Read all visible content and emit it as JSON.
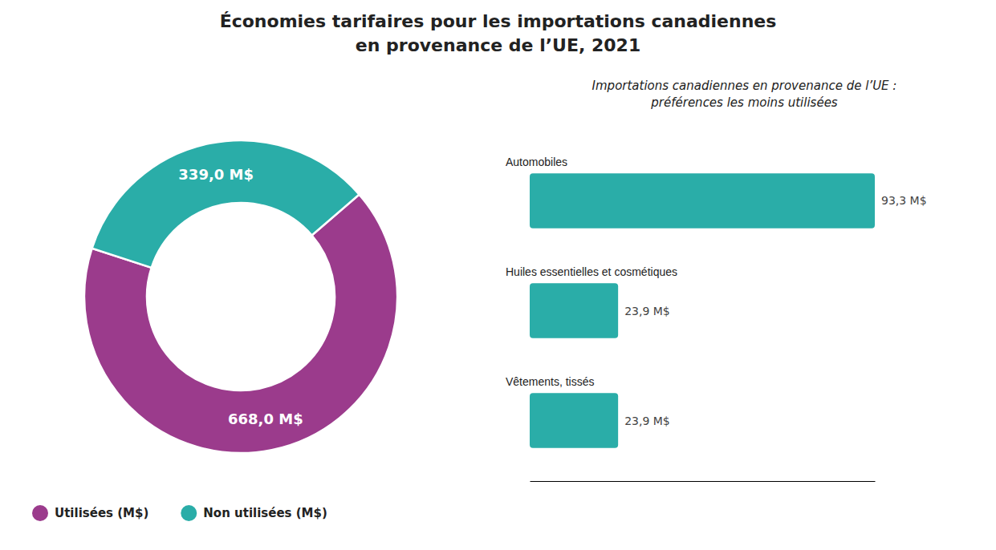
{
  "chart_data": [
    {
      "type": "donut",
      "title": "Économies tarifaires pour les importations canadiennes\nen provenance de l’UE, 2021",
      "categories": [
        "Utilisées (M$)",
        "Non utilisées (M$)"
      ],
      "values": [
        668.0,
        339.0
      ],
      "value_labels": [
        "668,0 M$",
        "339,0 M$"
      ],
      "colors": [
        "#9b3b8c",
        "#2aada8"
      ],
      "data_labels": true,
      "legend": "bottom"
    },
    {
      "type": "bar",
      "title": "Importations canadiennes en provenance de l’UE :\npréférences les moins utilisées",
      "orientation": "horizontal",
      "categories": [
        "Automobiles",
        "Huiles essentielles et cosmétiques",
        "Vêtements, tissés"
      ],
      "values": [
        93.3,
        23.9,
        23.9
      ],
      "value_labels": [
        "93,3 M$",
        "23,9 M$",
        "23,9 M$"
      ],
      "color": "#2aada8",
      "xlim": [
        0,
        93.3
      ],
      "data_labels": true,
      "tick_labels": "y"
    }
  ]
}
